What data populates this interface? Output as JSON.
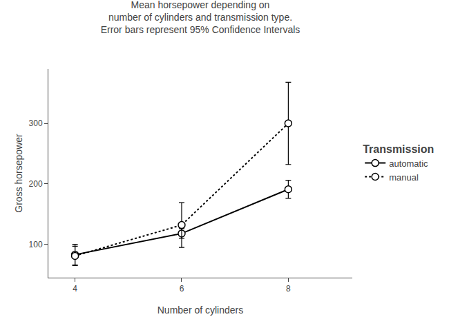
{
  "chart_data": {
    "type": "line",
    "title": "Mean horsepower depending on\nnumber of cylinders and transmission type.\nError bars represent 95% Confidence Intervals",
    "xlabel": "Number of cylinders",
    "ylabel": "Gross horsepower",
    "legend_title": "Transmission",
    "x": [
      4,
      6,
      8
    ],
    "series": [
      {
        "name": "automatic",
        "color": "#000000",
        "line_style": "solid",
        "marker": "circle",
        "values": [
          83.0,
          118.0,
          191.0
        ],
        "error_low": [
          17.0,
          8.0,
          15.0
        ],
        "error_high": [
          17.0,
          8.0,
          15.0
        ]
      },
      {
        "name": "manual",
        "color": "#000000",
        "line_style": "dotted",
        "marker": "circle",
        "values": [
          81.0,
          132.0,
          300.0
        ],
        "error_low": [
          16.0,
          37.0,
          68.0
        ],
        "error_high": [
          16.0,
          37.0,
          68.0
        ]
      }
    ],
    "xlim": [
      3.5,
      9.2
    ],
    "xticks": [
      4,
      6,
      8
    ],
    "ylim": [
      45,
      390
    ],
    "yticks": [
      100,
      200,
      300
    ],
    "grid": false,
    "legend": "right"
  }
}
